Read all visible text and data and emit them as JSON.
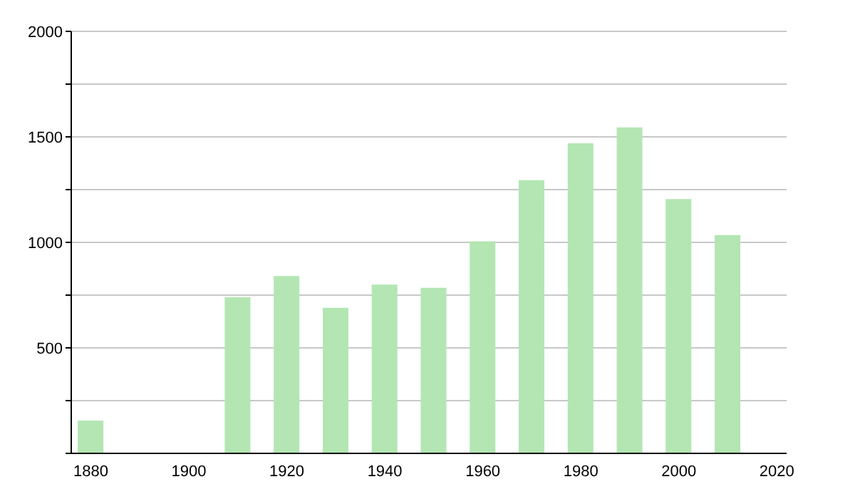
{
  "chart_data": {
    "type": "bar",
    "x": [
      1880,
      1910,
      1920,
      1930,
      1940,
      1950,
      1960,
      1970,
      1980,
      1990,
      2000,
      2010
    ],
    "values": [
      155,
      740,
      840,
      690,
      800,
      785,
      1005,
      1295,
      1470,
      1545,
      1205,
      1035
    ],
    "color": "#b3e6b3",
    "xlim": [
      1876,
      2022
    ],
    "xticks": [
      1880,
      1900,
      1920,
      1940,
      1960,
      1980,
      2000,
      2020
    ],
    "ylim": [
      0,
      2000
    ],
    "yticks": [
      {
        "value": 0,
        "label": null
      },
      {
        "value": 250,
        "label": null
      },
      500,
      {
        "value": 750,
        "label": null
      },
      1000,
      {
        "value": 1250,
        "label": null
      },
      1500,
      {
        "value": 1750,
        "label": null
      },
      2000
    ],
    "grid": "y"
  }
}
